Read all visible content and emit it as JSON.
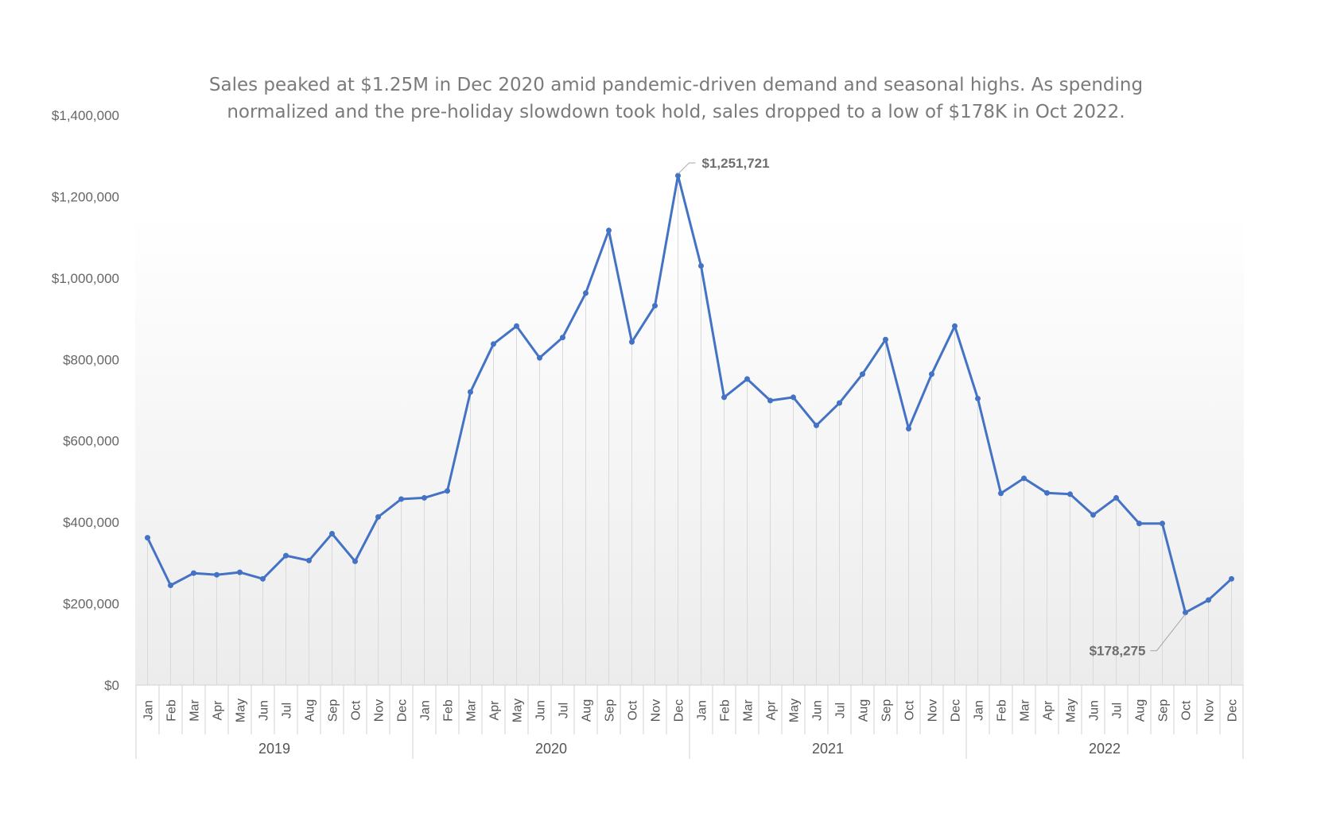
{
  "chart_data": {
    "type": "line",
    "title": [
      "Sales peaked at $1.25M in Dec 2020 amid pandemic-driven demand and seasonal highs. As spending",
      "normalized and the pre-holiday slowdown took hold, sales dropped to a low of $178K in Oct 2022."
    ],
    "years": [
      "2019",
      "2020",
      "2021",
      "2022"
    ],
    "months": [
      "Jan",
      "Feb",
      "Mar",
      "Apr",
      "May",
      "Jun",
      "Jul",
      "Aug",
      "Sep",
      "Oct",
      "Nov",
      "Dec"
    ],
    "ylim": [
      0,
      1400000
    ],
    "y_ticks": [
      0,
      200000,
      400000,
      600000,
      800000,
      1000000,
      1200000,
      1400000
    ],
    "y_tick_labels": [
      "$0",
      "$200,000",
      "$400,000",
      "$600,000",
      "$800,000",
      "$1,000,000",
      "$1,200,000",
      "$1,400,000"
    ],
    "series": [
      {
        "values": [
          362000,
          245000,
          275000,
          271000,
          277000,
          261000,
          318000,
          306000,
          372000,
          304000,
          413000,
          457000,
          460000,
          477000,
          720000,
          838000,
          882000,
          804000,
          854000,
          963000,
          1117000,
          843000,
          932000,
          1251721,
          1030000,
          707000,
          752000,
          699000,
          707000,
          638000,
          693000,
          764000,
          849000,
          630000,
          764000,
          882000,
          704000,
          471000,
          508000,
          472000,
          469000,
          418000,
          460000,
          397000,
          397000,
          178275,
          209000,
          261000
        ],
        "color": "#4472C4"
      }
    ],
    "annotations": [
      {
        "index": 23,
        "text": "$1,251,721"
      },
      {
        "index": 45,
        "text": "$178,275"
      }
    ],
    "grid": false,
    "drop_lines": true
  }
}
